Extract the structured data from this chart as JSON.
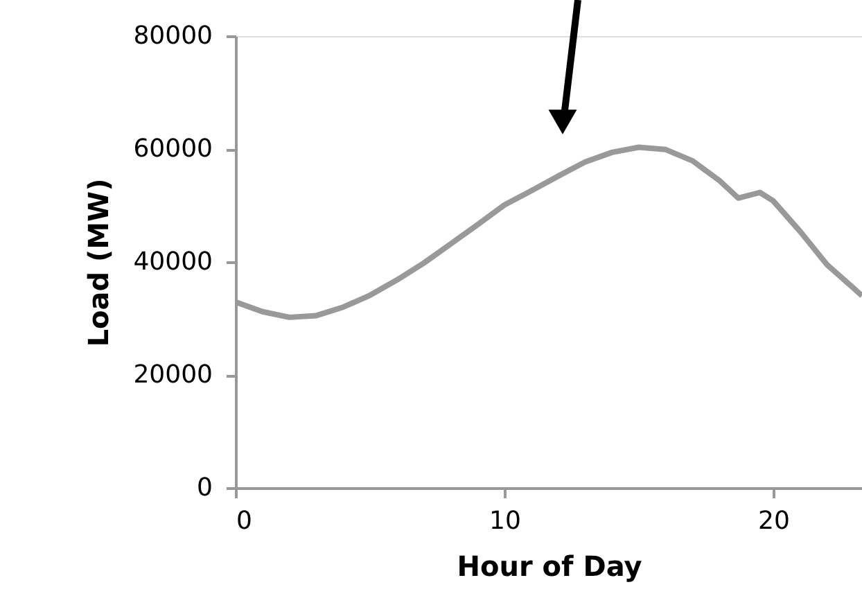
{
  "chart_data": {
    "type": "line",
    "xlabel": "Hour of Day",
    "ylabel": "Load (MW)",
    "x": [
      0,
      1,
      2,
      3,
      4,
      5,
      6,
      7,
      8,
      9,
      10,
      11,
      12,
      13,
      14,
      15,
      16,
      17,
      18,
      18.7,
      19.5,
      20,
      21,
      22,
      23,
      23.3
    ],
    "series": [
      {
        "color": "#999999",
        "values": [
          32900,
          31200,
          30200,
          30500,
          32000,
          34100,
          36800,
          39800,
          43200,
          46600,
          50100,
          52600,
          55200,
          57700,
          59400,
          60300,
          59900,
          57900,
          54400,
          51300,
          52300,
          50800,
          45400,
          39500,
          35300,
          34000
        ]
      }
    ],
    "xlim": [
      0,
      23.3
    ],
    "xticks": [
      0,
      10,
      20
    ],
    "ylim": [
      0,
      80000
    ],
    "yticks": [
      0,
      20000,
      40000,
      60000,
      80000
    ],
    "grid": false,
    "legend": false,
    "marker": "none",
    "line_style": "solid"
  }
}
